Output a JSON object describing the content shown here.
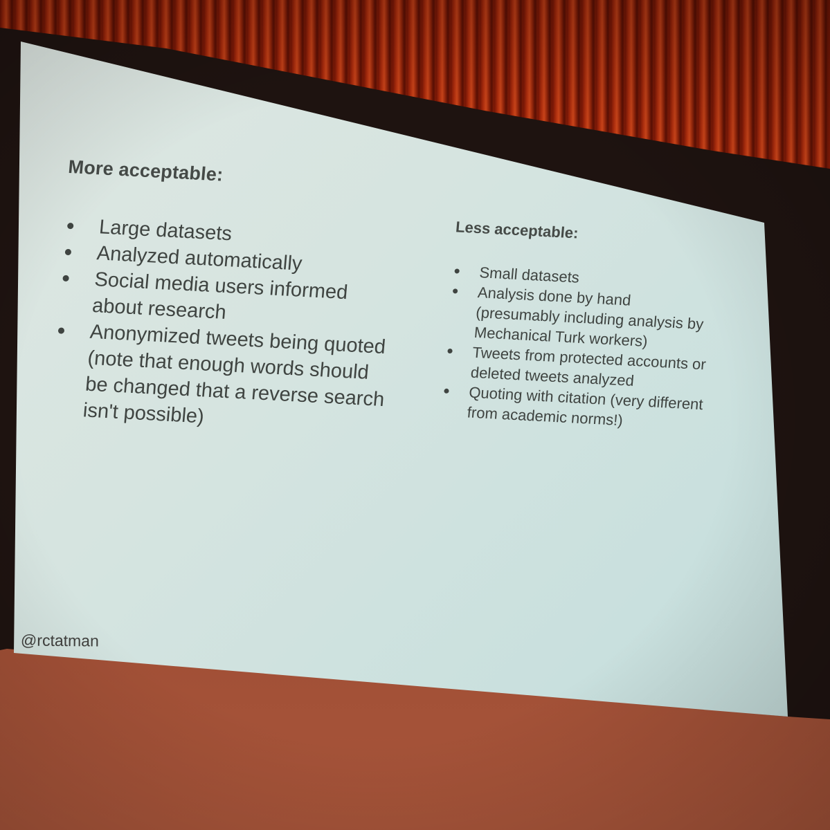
{
  "slide": {
    "left": {
      "heading": "More acceptable:",
      "items": [
        "Large datasets",
        "Analyzed automatically",
        "Social media users informed about research",
        "Anonymized tweets being quoted (note that enough words should be changed that a reverse search isn't possible)"
      ]
    },
    "right": {
      "heading": "Less acceptable:",
      "items": [
        "Small datasets",
        "Analysis done by hand (presumably including analysis by Mechanical Turk workers)",
        "Tweets from protected accounts or deleted tweets analyzed",
        "Quoting with citation (very different from academic norms!)"
      ]
    },
    "handle": "@rctatman"
  },
  "colors": {
    "curtain": "#b8300e",
    "frame": "#1e1310",
    "slide_background": "#d5e4e0",
    "text": "#3f4441"
  }
}
